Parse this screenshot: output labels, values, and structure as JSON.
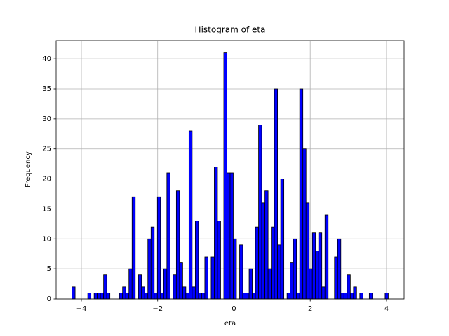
{
  "chart_data": {
    "type": "histogram",
    "title": "Histogram of eta",
    "x_label": "eta",
    "y_label": "Frequency",
    "bins": [
      -4.247,
      -4.164,
      -4.081,
      -3.998,
      -3.915,
      -3.832,
      -3.749,
      -3.666,
      -3.584,
      -3.501,
      -3.418,
      -3.335,
      -3.252,
      -3.169,
      -3.086,
      -3.003,
      -2.92,
      -2.837,
      -2.754,
      -2.671,
      -2.588,
      -2.505,
      -2.423,
      -2.34,
      -2.257,
      -2.174,
      -2.091,
      -2.008,
      -1.925,
      -1.842,
      -1.759,
      -1.676,
      -1.593,
      -1.51,
      -1.427,
      -1.344,
      -1.262,
      -1.179,
      -1.096,
      -1.013,
      -0.93,
      -0.847,
      -0.764,
      -0.681,
      -0.598,
      -0.515,
      -0.432,
      -0.349,
      -0.266,
      -0.183,
      -0.101,
      -0.018,
      0.065,
      0.148,
      0.231,
      0.314,
      0.397,
      0.48,
      0.563,
      0.646,
      0.729,
      0.812,
      0.895,
      0.977,
      1.06,
      1.143,
      1.226,
      1.309,
      1.392,
      1.475,
      1.558,
      1.641,
      1.724,
      1.807,
      1.89,
      1.973,
      2.056,
      2.138,
      2.221,
      2.304,
      2.387,
      2.47,
      2.553,
      2.636,
      2.719,
      2.802,
      2.885,
      2.968,
      3.051,
      3.134,
      3.216,
      3.299,
      3.382,
      3.465,
      3.548,
      3.631,
      3.714,
      3.797,
      3.88,
      3.963,
      4.046
    ],
    "values": [
      2,
      0,
      0,
      0,
      0,
      1,
      0,
      1,
      1,
      1,
      4,
      1,
      0,
      0,
      0,
      1,
      2,
      1,
      5,
      17,
      0,
      4,
      2,
      1,
      10,
      12,
      1,
      17,
      1,
      5,
      21,
      0,
      4,
      18,
      6,
      2,
      1,
      28,
      2,
      13,
      1,
      1,
      7,
      0,
      7,
      22,
      13,
      0,
      41,
      21,
      21,
      10,
      0,
      9,
      1,
      1,
      5,
      1,
      12,
      29,
      16,
      18,
      5,
      12,
      35,
      9,
      20,
      0,
      1,
      6,
      10,
      1,
      35,
      25,
      16,
      5,
      11,
      8,
      11,
      2,
      14,
      0,
      0,
      7,
      10,
      1,
      1,
      4,
      1,
      2,
      0,
      1,
      0,
      0,
      1,
      0,
      0,
      0,
      0,
      1
    ],
    "color": "#0000ff",
    "edgecolor": "#000000",
    "xlim": [
      -4.662,
      4.461
    ],
    "ylim": [
      0,
      43.05
    ],
    "xticks": [
      {
        "value": -4,
        "label": "−4"
      },
      {
        "value": -2,
        "label": "−2"
      },
      0,
      2,
      4
    ],
    "yticks": [
      0,
      5,
      10,
      15,
      20,
      25,
      30,
      35,
      40
    ],
    "grid": true
  }
}
